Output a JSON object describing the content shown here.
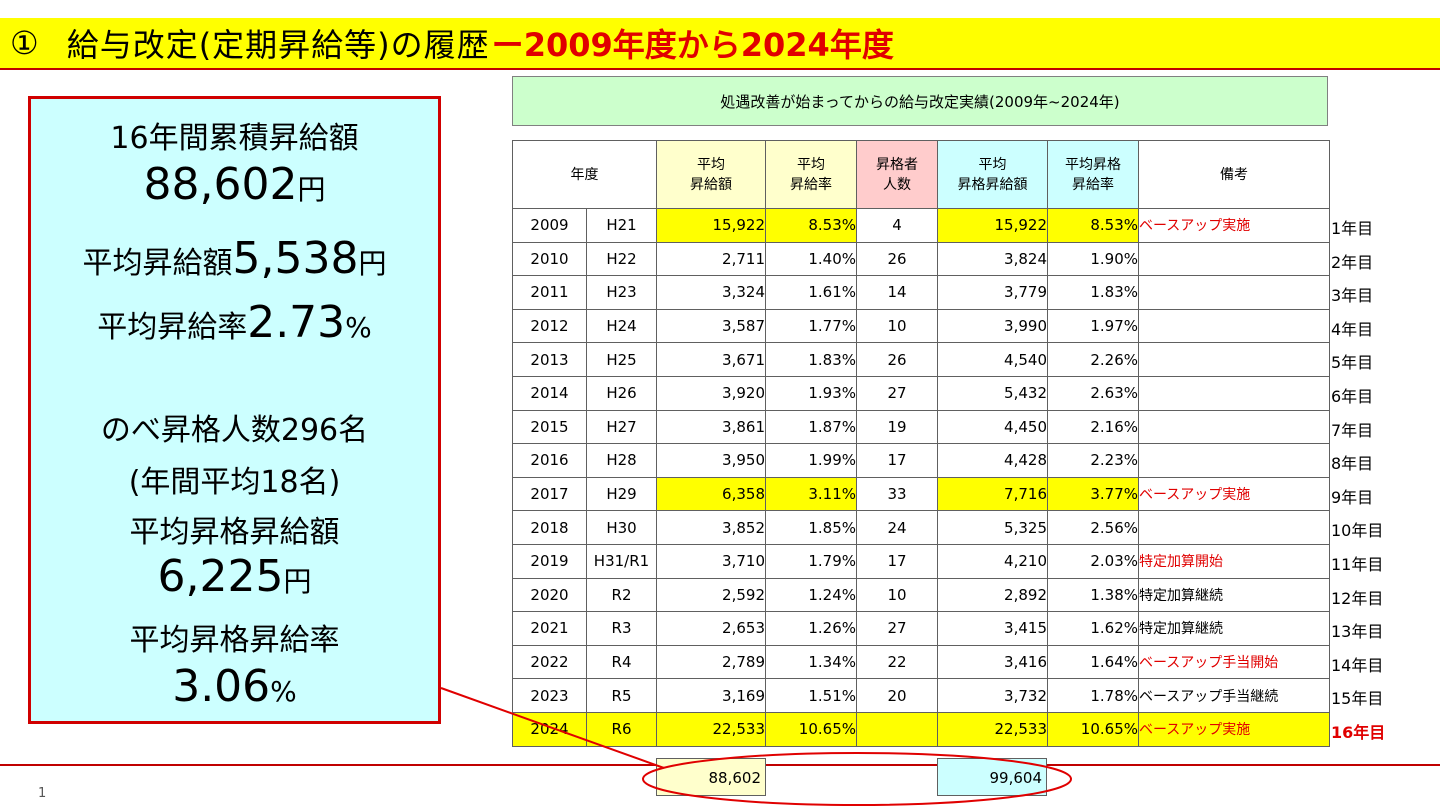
{
  "title": {
    "number": "①",
    "main": "給与改定(定期昇給等)の履歴",
    "dash": "ー",
    "range": "2009年度から2024年度"
  },
  "summary": {
    "cum_label": "16年間累積昇給額",
    "cum_value": "88,602",
    "cum_unit": "円",
    "avg_raise_label": "平均昇給額",
    "avg_raise_value": "5,538",
    "avg_raise_unit": "円",
    "avg_rate_label": "平均昇給率",
    "avg_rate_value": "2.73",
    "avg_rate_unit": "%",
    "promo_label": "のべ昇格人数296名",
    "promo_annual": "(年間平均18名)",
    "promo_avg_label": "平均昇格昇給額",
    "promo_avg_value": "6,225",
    "promo_avg_unit": "円",
    "promo_rate_label": "平均昇格昇給率",
    "promo_rate_value": "3.06",
    "promo_rate_unit": "%"
  },
  "table": {
    "caption": "処遇改善が始まってからの給与改定実績(2009年~2024年)",
    "headers": {
      "year": "年度",
      "avg_raise": [
        "平均",
        "昇給額"
      ],
      "avg_rate": [
        "平均",
        "昇給率"
      ],
      "promoted": [
        "昇格者",
        "人数"
      ],
      "promo_raise": [
        "平均",
        "昇格昇給額"
      ],
      "promo_rate": [
        "平均昇格",
        "昇給率"
      ],
      "remarks": "備考"
    },
    "rows": [
      {
        "year": "2009",
        "era": "H21",
        "avg_raise": "15,922",
        "avg_rate": "8.53%",
        "promoted": "4",
        "promo_raise": "15,922",
        "promo_rate": "8.53%",
        "remarks": "ベースアップ実施",
        "side": "1年目"
      },
      {
        "year": "2010",
        "era": "H22",
        "avg_raise": "2,711",
        "avg_rate": "1.40%",
        "promoted": "26",
        "promo_raise": "3,824",
        "promo_rate": "1.90%",
        "remarks": "",
        "side": "2年目"
      },
      {
        "year": "2011",
        "era": "H23",
        "avg_raise": "3,324",
        "avg_rate": "1.61%",
        "promoted": "14",
        "promo_raise": "3,779",
        "promo_rate": "1.83%",
        "remarks": "",
        "side": "3年目"
      },
      {
        "year": "2012",
        "era": "H24",
        "avg_raise": "3,587",
        "avg_rate": "1.77%",
        "promoted": "10",
        "promo_raise": "3,990",
        "promo_rate": "1.97%",
        "remarks": "",
        "side": "4年目"
      },
      {
        "year": "2013",
        "era": "H25",
        "avg_raise": "3,671",
        "avg_rate": "1.83%",
        "promoted": "26",
        "promo_raise": "4,540",
        "promo_rate": "2.26%",
        "remarks": "",
        "side": "5年目"
      },
      {
        "year": "2014",
        "era": "H26",
        "avg_raise": "3,920",
        "avg_rate": "1.93%",
        "promoted": "27",
        "promo_raise": "5,432",
        "promo_rate": "2.63%",
        "remarks": "",
        "side": "6年目"
      },
      {
        "year": "2015",
        "era": "H27",
        "avg_raise": "3,861",
        "avg_rate": "1.87%",
        "promoted": "19",
        "promo_raise": "4,450",
        "promo_rate": "2.16%",
        "remarks": "",
        "side": "7年目"
      },
      {
        "year": "2016",
        "era": "H28",
        "avg_raise": "3,950",
        "avg_rate": "1.99%",
        "promoted": "17",
        "promo_raise": "4,428",
        "promo_rate": "2.23%",
        "remarks": "",
        "side": "8年目"
      },
      {
        "year": "2017",
        "era": "H29",
        "avg_raise": "6,358",
        "avg_rate": "3.11%",
        "promoted": "33",
        "promo_raise": "7,716",
        "promo_rate": "3.77%",
        "remarks": "ベースアップ実施",
        "side": "9年目"
      },
      {
        "year": "2018",
        "era": "H30",
        "avg_raise": "3,852",
        "avg_rate": "1.85%",
        "promoted": "24",
        "promo_raise": "5,325",
        "promo_rate": "2.56%",
        "remarks": "",
        "side": "10年目"
      },
      {
        "year": "2019",
        "era": "H31/R1",
        "avg_raise": "3,710",
        "avg_rate": "1.79%",
        "promoted": "17",
        "promo_raise": "4,210",
        "promo_rate": "2.03%",
        "remarks": "特定加算開始",
        "side": "11年目"
      },
      {
        "year": "2020",
        "era": "R2",
        "avg_raise": "2,592",
        "avg_rate": "1.24%",
        "promoted": "10",
        "promo_raise": "2,892",
        "promo_rate": "1.38%",
        "remarks": "特定加算継続",
        "side": "12年目"
      },
      {
        "year": "2021",
        "era": "R3",
        "avg_raise": "2,653",
        "avg_rate": "1.26%",
        "promoted": "27",
        "promo_raise": "3,415",
        "promo_rate": "1.62%",
        "remarks": "特定加算継続",
        "side": "13年目"
      },
      {
        "year": "2022",
        "era": "R4",
        "avg_raise": "2,789",
        "avg_rate": "1.34%",
        "promoted": "22",
        "promo_raise": "3,416",
        "promo_rate": "1.64%",
        "remarks": "ベースアップ手当開始",
        "side": "14年目"
      },
      {
        "year": "2023",
        "era": "R5",
        "avg_raise": "3,169",
        "avg_rate": "1.51%",
        "promoted": "20",
        "promo_raise": "3,732",
        "promo_rate": "1.78%",
        "remarks": "ベースアップ手当継続",
        "side": "15年目"
      },
      {
        "year": "2024",
        "era": "R6",
        "avg_raise": "22,533",
        "avg_rate": "10.65%",
        "promoted": "",
        "promo_raise": "22,533",
        "promo_rate": "10.65%",
        "remarks": "ベースアップ実施",
        "side": "16年目"
      }
    ],
    "totals": {
      "avg_raise": "88,602",
      "promo_raise": "99,604"
    }
  },
  "page_number": "1",
  "colors": {
    "title_bg": "#ffff00",
    "title_accent": "#e00000",
    "summary_bg": "#ccffff",
    "summary_border": "#d00000",
    "caption_bg": "#ccffcc",
    "highlight": "#ffff00",
    "header_yellow": "#ffffcc",
    "header_pink": "#ffcccc",
    "header_cyan": "#ccffff"
  }
}
